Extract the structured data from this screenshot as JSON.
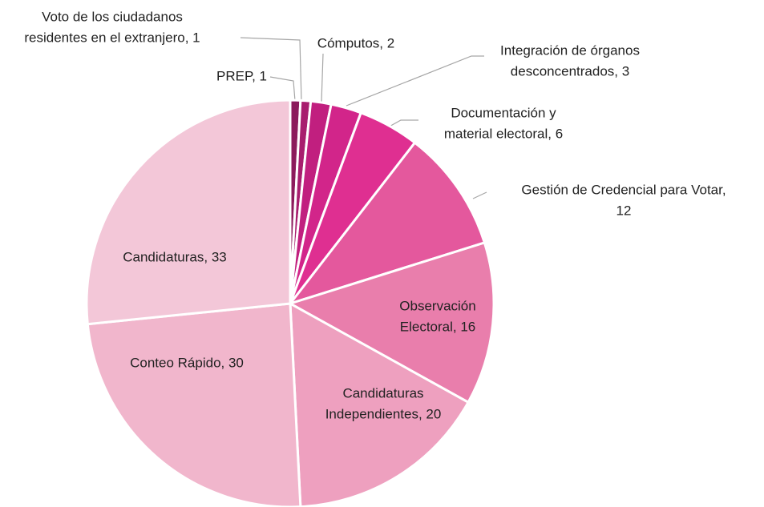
{
  "chart_data": {
    "type": "pie",
    "labels": [
      [
        "PREP, 1"
      ],
      [
        "Voto de los ciudadanos",
        "residentes en el extranjero, 1"
      ],
      [
        "Cómputos, 2"
      ],
      [
        "Integración de órganos",
        "desconcentrados, 3"
      ],
      [
        "Documentación y",
        "material electoral, 6"
      ],
      [
        "Gestión de Credencial para Votar,",
        "12"
      ],
      [
        "Observación",
        "Electoral, 16"
      ],
      [
        "Candidaturas",
        "Independientes, 20"
      ],
      [
        "Conteo Rápido, 30"
      ],
      [
        "Candidaturas, 33"
      ]
    ],
    "values": [
      1,
      1,
      2,
      3,
      6,
      12,
      16,
      20,
      30,
      33
    ],
    "colors": [
      "#8c1b5c",
      "#a81d6e",
      "#c11f7f",
      "#d2258a",
      "#df2f91",
      "#e4589d",
      "#e97eac",
      "#eea0bf",
      "#f1b6cc",
      "#f3c7d8"
    ]
  }
}
